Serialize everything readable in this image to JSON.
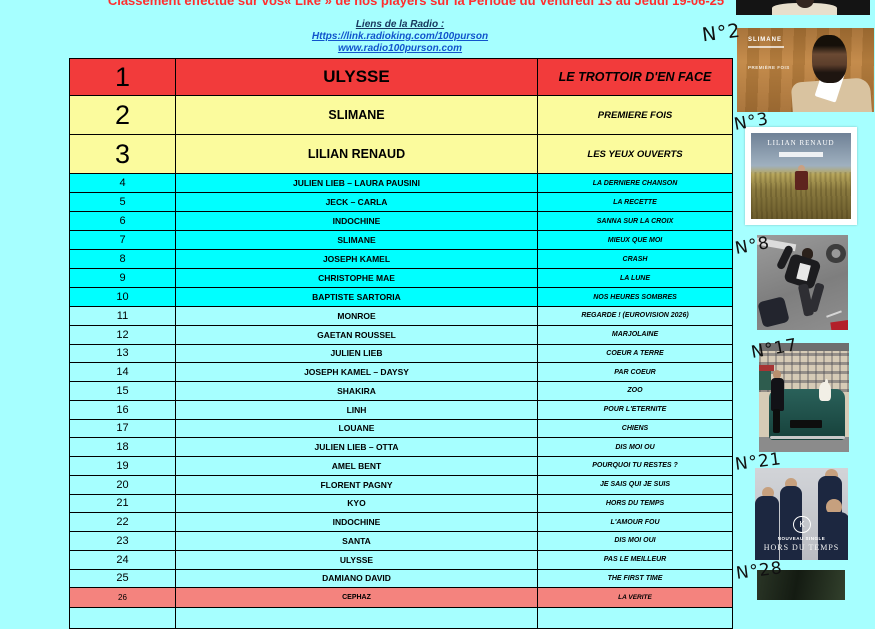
{
  "header": {
    "title": "Classement effectué sur vos« Like » de nos players sur la Période du Vendredi 13 au Jeudi 19-06-25",
    "links_label": "Liens de la Radio :",
    "link1": "Https://link.radioking.com/100purson",
    "link2": "www.radio100purson.com"
  },
  "colors": {
    "page_background": "#A6FFFF",
    "rank1_row": "#F23B3B",
    "rank2_3_rows": "#FBFB9D",
    "rank4_10_rows": "#00FFFF",
    "rank11_25_rows": "#A6FFFF",
    "rank26_row": "#F4837E",
    "title_text": "#FF2E2E",
    "link_text": "#1155CC"
  },
  "chart_data": {
    "type": "table",
    "title": "Classement effectué sur vos« Like » de nos players sur la Période du Vendredi 13 au Jeudi 19-06-25",
    "columns": [
      "rank",
      "artist",
      "title"
    ],
    "rows": [
      {
        "rank": 1,
        "artist": "ULYSSE",
        "title": "LE TROTTOIR D'EN FACE"
      },
      {
        "rank": 2,
        "artist": "SLIMANE",
        "title": "PREMIERE FOIS"
      },
      {
        "rank": 3,
        "artist": "LILIAN RENAUD",
        "title": "LES YEUX OUVERTS"
      },
      {
        "rank": 4,
        "artist": "JULIEN LIEB – LAURA PAUSINI",
        "title": "LA DERNIERE CHANSON"
      },
      {
        "rank": 5,
        "artist": "JECK – CARLA",
        "title": "LA RECETTE"
      },
      {
        "rank": 6,
        "artist": "INDOCHINE",
        "title": "SANNA SUR LA CROIX"
      },
      {
        "rank": 7,
        "artist": "SLIMANE",
        "title": "MIEUX QUE MOI"
      },
      {
        "rank": 8,
        "artist": "JOSEPH KAMEL",
        "title": "CRASH"
      },
      {
        "rank": 9,
        "artist": "CHRISTOPHE MAE",
        "title": "LA LUNE"
      },
      {
        "rank": 10,
        "artist": "BAPTISTE SARTORIA",
        "title": "NOS HEURES SOMBRES"
      },
      {
        "rank": 11,
        "artist": "MONROE",
        "title": "REGARDE ! (EUROVISION 2026)"
      },
      {
        "rank": 12,
        "artist": "GAETAN ROUSSEL",
        "title": "MARJOLAINE"
      },
      {
        "rank": 13,
        "artist": "JULIEN LIEB",
        "title": "COEUR A TERRE"
      },
      {
        "rank": 14,
        "artist": "JOSEPH KAMEL – DAYSY",
        "title": "PAR COEUR"
      },
      {
        "rank": 15,
        "artist": "SHAKIRA",
        "title": "ZOO"
      },
      {
        "rank": 16,
        "artist": "LINH",
        "title": "POUR L'ETERNITE"
      },
      {
        "rank": 17,
        "artist": "LOUANE",
        "title": "CHIENS"
      },
      {
        "rank": 18,
        "artist": "JULIEN LIEB – OTTA",
        "title": "DIS MOI OU"
      },
      {
        "rank": 19,
        "artist": "AMEL BENT",
        "title": "POURQUOI TU RESTES ?"
      },
      {
        "rank": 20,
        "artist": "FLORENT PAGNY",
        "title": "JE SAIS QUI JE SUIS"
      },
      {
        "rank": 21,
        "artist": "KYO",
        "title": "HORS DU TEMPS"
      },
      {
        "rank": 22,
        "artist": "INDOCHINE",
        "title": "L'AMOUR FOU"
      },
      {
        "rank": 23,
        "artist": "SANTA",
        "title": "DIS MOI OUI"
      },
      {
        "rank": 24,
        "artist": "ULYSSE",
        "title": "PAS LE MEILLEUR"
      },
      {
        "rank": 25,
        "artist": "DAMIANO DAVID",
        "title": "THE FIRST TIME"
      },
      {
        "rank": 26,
        "artist": "CEPHAZ",
        "title": "LA VERITE"
      }
    ]
  },
  "right_column": {
    "labels": {
      "n2": "N°2",
      "n3": "N°3",
      "n8": "N°8",
      "n17": "N°17",
      "n21": "N°21",
      "n28": "N°28"
    },
    "covers": {
      "slimane": {
        "title": "SLIMANE",
        "caption": "PREMIÈRE FOIS"
      },
      "lilian": {
        "title": "LILIAN RENAUD"
      },
      "kyo": {
        "logo": "K",
        "line1": "NOUVEAU SINGLE",
        "line2": "HORS DU TEMPS"
      }
    }
  }
}
